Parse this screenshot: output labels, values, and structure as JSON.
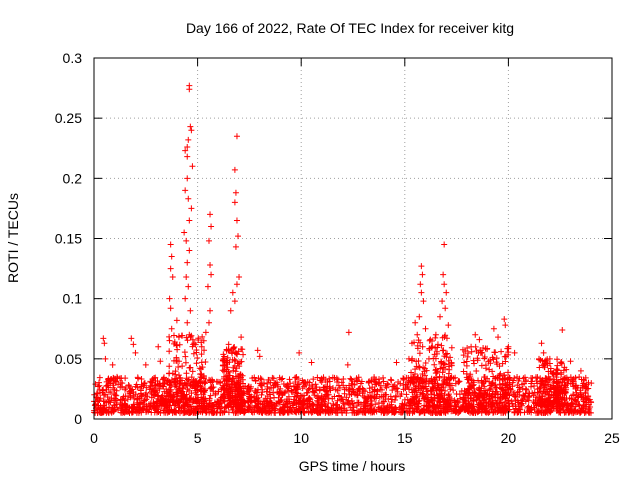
{
  "chart_data": {
    "type": "scatter",
    "title": "Day 166 of 2022, Rate Of TEC Index for receiver kitg",
    "xlabel": "GPS time / hours",
    "ylabel": "ROTI / TECUs",
    "xlim": [
      0,
      25
    ],
    "ylim": [
      0,
      0.3
    ],
    "x_ticks": [
      0,
      5,
      10,
      15,
      20,
      25
    ],
    "x_tick_labels": [
      "0",
      "5",
      "10",
      "15",
      "20",
      "25"
    ],
    "y_ticks": [
      0,
      0.05,
      0.1,
      0.15,
      0.2,
      0.25,
      0.3
    ],
    "y_tick_labels": [
      "0",
      "0.05",
      "0.1",
      "0.15",
      "0.2",
      "0.25",
      "0.3"
    ],
    "grid": true,
    "legend": "none",
    "marker": "+",
    "series": [
      {
        "name": "ROTI",
        "color": "#ff0000",
        "baseline_x_range": [
          0,
          24
        ],
        "baseline_y_range": [
          0.005,
          0.035
        ],
        "points": [
          {
            "x": 4.6,
            "y": 0.277
          },
          {
            "x": 4.6,
            "y": 0.274
          },
          {
            "x": 4.65,
            "y": 0.243
          },
          {
            "x": 4.7,
            "y": 0.24
          },
          {
            "x": 4.55,
            "y": 0.232
          },
          {
            "x": 4.5,
            "y": 0.226
          },
          {
            "x": 4.4,
            "y": 0.223
          },
          {
            "x": 4.5,
            "y": 0.218
          },
          {
            "x": 4.75,
            "y": 0.21
          },
          {
            "x": 4.5,
            "y": 0.2
          },
          {
            "x": 4.4,
            "y": 0.19
          },
          {
            "x": 4.55,
            "y": 0.183
          },
          {
            "x": 4.7,
            "y": 0.175
          },
          {
            "x": 4.6,
            "y": 0.165
          },
          {
            "x": 4.35,
            "y": 0.155
          },
          {
            "x": 4.45,
            "y": 0.148
          },
          {
            "x": 4.6,
            "y": 0.14
          },
          {
            "x": 4.5,
            "y": 0.13
          },
          {
            "x": 4.45,
            "y": 0.118
          },
          {
            "x": 4.55,
            "y": 0.11
          },
          {
            "x": 4.4,
            "y": 0.1
          },
          {
            "x": 4.65,
            "y": 0.09
          },
          {
            "x": 4.5,
            "y": 0.08
          },
          {
            "x": 4.6,
            "y": 0.07
          },
          {
            "x": 3.7,
            "y": 0.145
          },
          {
            "x": 3.75,
            "y": 0.135
          },
          {
            "x": 3.7,
            "y": 0.125
          },
          {
            "x": 3.8,
            "y": 0.118
          },
          {
            "x": 3.65,
            "y": 0.1
          },
          {
            "x": 3.7,
            "y": 0.092
          },
          {
            "x": 3.75,
            "y": 0.075
          },
          {
            "x": 4.0,
            "y": 0.082
          },
          {
            "x": 4.1,
            "y": 0.068
          },
          {
            "x": 5.6,
            "y": 0.17
          },
          {
            "x": 5.65,
            "y": 0.16
          },
          {
            "x": 5.55,
            "y": 0.148
          },
          {
            "x": 5.6,
            "y": 0.128
          },
          {
            "x": 5.65,
            "y": 0.12
          },
          {
            "x": 5.5,
            "y": 0.11
          },
          {
            "x": 5.6,
            "y": 0.09
          },
          {
            "x": 5.55,
            "y": 0.08
          },
          {
            "x": 5.3,
            "y": 0.065
          },
          {
            "x": 5.2,
            "y": 0.06
          },
          {
            "x": 5.4,
            "y": 0.072
          },
          {
            "x": 6.9,
            "y": 0.235
          },
          {
            "x": 6.8,
            "y": 0.207
          },
          {
            "x": 6.85,
            "y": 0.188
          },
          {
            "x": 6.8,
            "y": 0.18
          },
          {
            "x": 6.9,
            "y": 0.165
          },
          {
            "x": 6.95,
            "y": 0.152
          },
          {
            "x": 6.85,
            "y": 0.143
          },
          {
            "x": 7.0,
            "y": 0.118
          },
          {
            "x": 6.9,
            "y": 0.112
          },
          {
            "x": 6.7,
            "y": 0.105
          },
          {
            "x": 6.8,
            "y": 0.098
          },
          {
            "x": 6.6,
            "y": 0.09
          },
          {
            "x": 7.1,
            "y": 0.068
          },
          {
            "x": 6.5,
            "y": 0.062
          },
          {
            "x": 0.45,
            "y": 0.067
          },
          {
            "x": 0.5,
            "y": 0.063
          },
          {
            "x": 0.55,
            "y": 0.05
          },
          {
            "x": 0.9,
            "y": 0.045
          },
          {
            "x": 1.8,
            "y": 0.067
          },
          {
            "x": 1.9,
            "y": 0.062
          },
          {
            "x": 2.0,
            "y": 0.055
          },
          {
            "x": 2.5,
            "y": 0.045
          },
          {
            "x": 3.1,
            "y": 0.06
          },
          {
            "x": 3.2,
            "y": 0.048
          },
          {
            "x": 7.9,
            "y": 0.057
          },
          {
            "x": 8.0,
            "y": 0.052
          },
          {
            "x": 9.9,
            "y": 0.055
          },
          {
            "x": 10.5,
            "y": 0.047
          },
          {
            "x": 12.3,
            "y": 0.072
          },
          {
            "x": 12.25,
            "y": 0.045
          },
          {
            "x": 14.6,
            "y": 0.047
          },
          {
            "x": 15.2,
            "y": 0.05
          },
          {
            "x": 15.8,
            "y": 0.127
          },
          {
            "x": 15.85,
            "y": 0.12
          },
          {
            "x": 15.75,
            "y": 0.112
          },
          {
            "x": 15.8,
            "y": 0.105
          },
          {
            "x": 15.9,
            "y": 0.098
          },
          {
            "x": 15.7,
            "y": 0.085
          },
          {
            "x": 15.5,
            "y": 0.08
          },
          {
            "x": 15.6,
            "y": 0.07
          },
          {
            "x": 16.0,
            "y": 0.075
          },
          {
            "x": 16.2,
            "y": 0.065
          },
          {
            "x": 16.9,
            "y": 0.145
          },
          {
            "x": 16.85,
            "y": 0.12
          },
          {
            "x": 16.9,
            "y": 0.112
          },
          {
            "x": 17.0,
            "y": 0.105
          },
          {
            "x": 16.8,
            "y": 0.098
          },
          {
            "x": 16.95,
            "y": 0.092
          },
          {
            "x": 16.7,
            "y": 0.085
          },
          {
            "x": 17.1,
            "y": 0.078
          },
          {
            "x": 16.5,
            "y": 0.07
          },
          {
            "x": 16.6,
            "y": 0.062
          },
          {
            "x": 18.4,
            "y": 0.07
          },
          {
            "x": 18.2,
            "y": 0.06
          },
          {
            "x": 18.6,
            "y": 0.066
          },
          {
            "x": 19.3,
            "y": 0.075
          },
          {
            "x": 19.8,
            "y": 0.083
          },
          {
            "x": 19.85,
            "y": 0.078
          },
          {
            "x": 19.5,
            "y": 0.068
          },
          {
            "x": 20.0,
            "y": 0.06
          },
          {
            "x": 20.3,
            "y": 0.055
          },
          {
            "x": 21.6,
            "y": 0.063
          },
          {
            "x": 21.7,
            "y": 0.055
          },
          {
            "x": 22.0,
            "y": 0.05
          },
          {
            "x": 22.6,
            "y": 0.074
          },
          {
            "x": 23.0,
            "y": 0.048
          },
          {
            "x": 23.5,
            "y": 0.04
          }
        ]
      }
    ]
  }
}
